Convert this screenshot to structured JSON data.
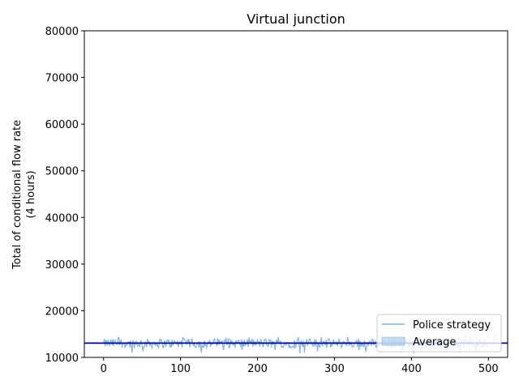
{
  "chart_data": {
    "type": "line",
    "title": "Virtual junction",
    "xlabel": "",
    "ylabel_line1": "Total of conditional flow rate",
    "ylabel_line2": "(4 hours)",
    "xlim": [
      -25,
      525
    ],
    "ylim": [
      10000,
      80000
    ],
    "xticks": [
      0,
      100,
      200,
      300,
      400,
      500
    ],
    "yticks": [
      10000,
      20000,
      30000,
      40000,
      50000,
      60000,
      70000,
      80000
    ],
    "grid": false,
    "legend_position": "lower-right",
    "legend": [
      "Police strategy",
      "Average"
    ],
    "series": [
      {
        "name": "Police strategy",
        "color": "#5b9bd5",
        "x_start": 0,
        "x_end": 500,
        "points": 501,
        "y_min": 10800,
        "y_max": 14400,
        "band_low": 12000,
        "band_high": 14000
      }
    ],
    "average": {
      "value": 13062.8,
      "label": "13062.8",
      "color": "#00008b"
    }
  }
}
